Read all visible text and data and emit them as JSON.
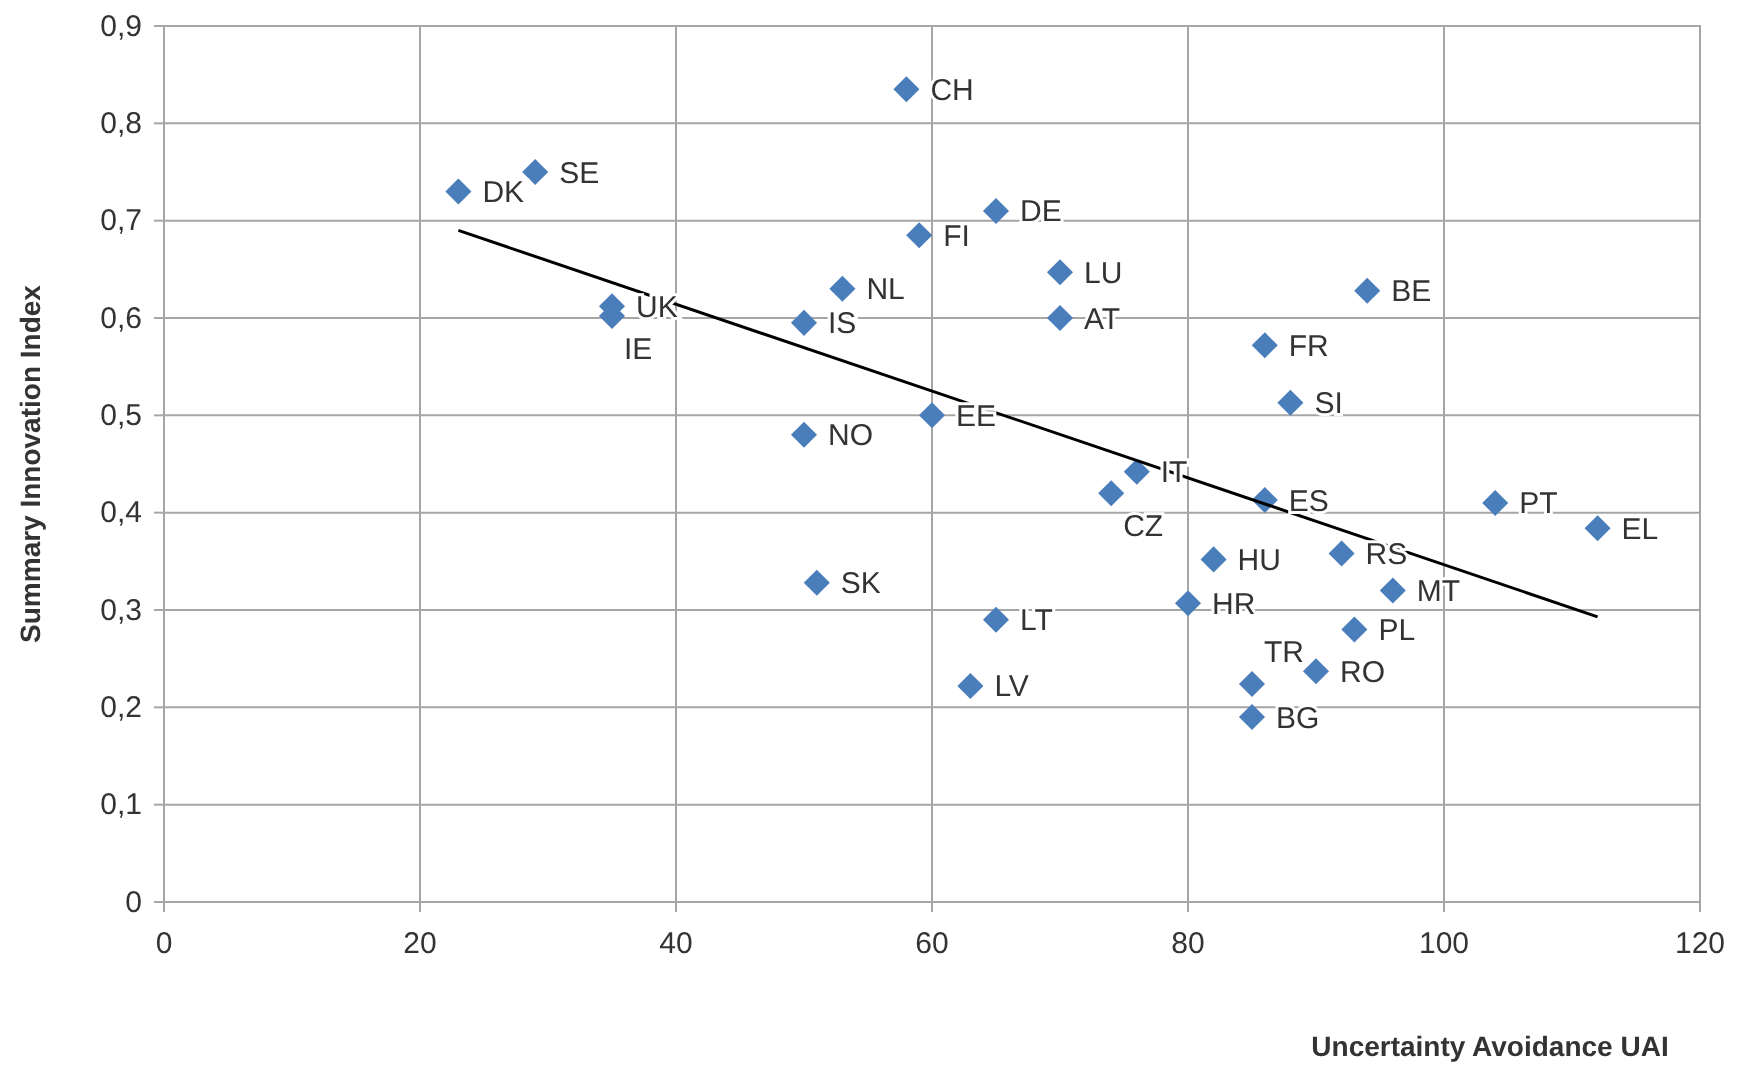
{
  "chart_data": {
    "type": "scatter",
    "xlabel": "Uncertainty Avoidance UAI",
    "ylabel": "Summary Innovation Index",
    "xlim": [
      0,
      120
    ],
    "xticks": [
      0,
      20,
      40,
      60,
      80,
      100,
      120
    ],
    "ylim": [
      0,
      0.9
    ],
    "yticks": [
      {
        "value": 0,
        "label": "0"
      },
      {
        "value": 0.1,
        "label": "0,1"
      },
      {
        "value": 0.2,
        "label": "0,2"
      },
      {
        "value": 0.3,
        "label": "0,3"
      },
      {
        "value": 0.4,
        "label": "0,4"
      },
      {
        "value": 0.5,
        "label": "0,5"
      },
      {
        "value": 0.6,
        "label": "0,6"
      },
      {
        "value": 0.7,
        "label": "0,7"
      },
      {
        "value": 0.8,
        "label": "0,8"
      },
      {
        "value": 0.9,
        "label": "0,9"
      }
    ],
    "grid": true,
    "marker": "diamond",
    "series": [
      {
        "type": "scatter",
        "color": "#4a7ebb",
        "x": [
          23,
          29,
          35,
          35,
          53,
          50,
          50,
          58,
          59,
          65,
          70,
          70,
          60,
          76,
          74,
          86,
          88,
          94,
          86,
          104,
          112,
          82,
          92,
          96,
          80,
          93,
          51,
          65,
          63,
          85,
          90,
          85
        ],
        "values": [
          0.73,
          0.75,
          0.612,
          0.602,
          0.63,
          0.595,
          0.48,
          0.835,
          0.685,
          0.71,
          0.647,
          0.6,
          0.5,
          0.442,
          0.42,
          0.572,
          0.513,
          0.628,
          0.413,
          0.41,
          0.384,
          0.352,
          0.358,
          0.32,
          0.307,
          0.28,
          0.328,
          0.29,
          0.222,
          0.224,
          0.237,
          0.19
        ]
      },
      {
        "type": "line",
        "color": "#000000",
        "line_style": "solid",
        "marker": "none",
        "x": [
          23,
          112
        ],
        "values": [
          0.69,
          0.293
        ]
      }
    ],
    "annotations": [
      {
        "text": "DK",
        "x": 23,
        "y": 0.73
      },
      {
        "text": "SE",
        "x": 29,
        "y": 0.75
      },
      {
        "text": "UK",
        "x": 35,
        "y": 0.612
      },
      {
        "text": "IE",
        "x": 35,
        "y": 0.602
      },
      {
        "text": "NL",
        "x": 53,
        "y": 0.63
      },
      {
        "text": "IS",
        "x": 50,
        "y": 0.595
      },
      {
        "text": "NO",
        "x": 50,
        "y": 0.48
      },
      {
        "text": "CH",
        "x": 58,
        "y": 0.835
      },
      {
        "text": "FI",
        "x": 59,
        "y": 0.685
      },
      {
        "text": "DE",
        "x": 65,
        "y": 0.71
      },
      {
        "text": "LU",
        "x": 70,
        "y": 0.647
      },
      {
        "text": "AT",
        "x": 70,
        "y": 0.6
      },
      {
        "text": "EE",
        "x": 60,
        "y": 0.5
      },
      {
        "text": "IT",
        "x": 76,
        "y": 0.442
      },
      {
        "text": "CZ",
        "x": 74,
        "y": 0.42
      },
      {
        "text": "FR",
        "x": 86,
        "y": 0.572
      },
      {
        "text": "SI",
        "x": 88,
        "y": 0.513
      },
      {
        "text": "BE",
        "x": 94,
        "y": 0.628
      },
      {
        "text": "ES",
        "x": 86,
        "y": 0.413
      },
      {
        "text": "PT",
        "x": 104,
        "y": 0.41
      },
      {
        "text": "EL",
        "x": 112,
        "y": 0.384
      },
      {
        "text": "HU",
        "x": 82,
        "y": 0.352
      },
      {
        "text": "RS",
        "x": 92,
        "y": 0.358
      },
      {
        "text": "MT",
        "x": 96,
        "y": 0.32
      },
      {
        "text": "HR",
        "x": 80,
        "y": 0.307
      },
      {
        "text": "PL",
        "x": 93,
        "y": 0.28
      },
      {
        "text": "SK",
        "x": 51,
        "y": 0.328
      },
      {
        "text": "LT",
        "x": 65,
        "y": 0.29
      },
      {
        "text": "LV",
        "x": 63,
        "y": 0.222
      },
      {
        "text": "TR",
        "x": 85,
        "y": 0.224
      },
      {
        "text": "RO",
        "x": 90,
        "y": 0.237
      },
      {
        "text": "BG",
        "x": 85,
        "y": 0.19
      }
    ]
  }
}
